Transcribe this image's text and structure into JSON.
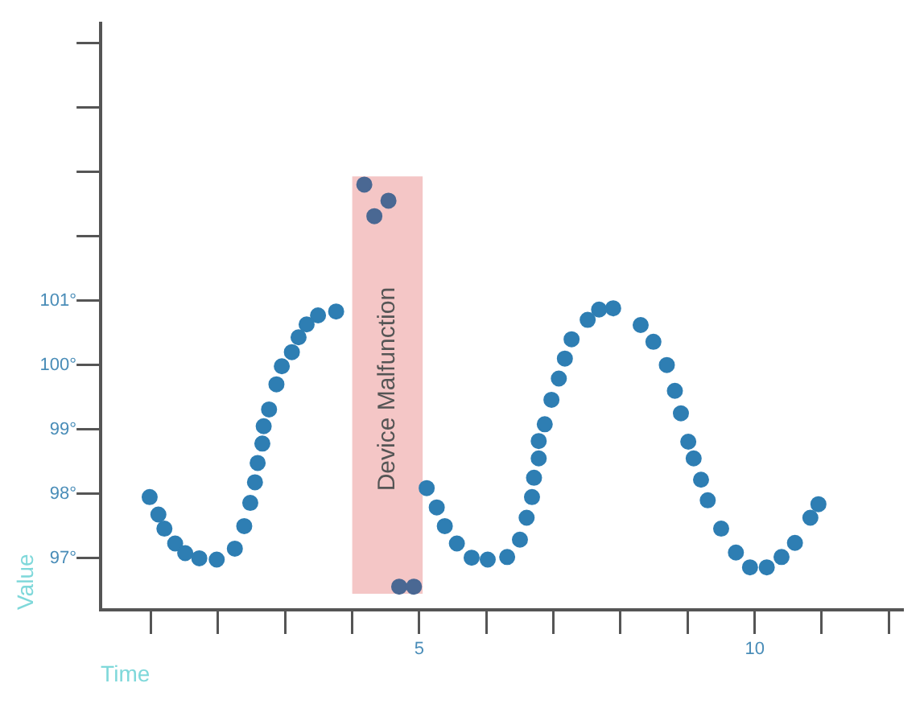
{
  "chart_data": {
    "type": "scatter",
    "xlabel": "Time",
    "ylabel": "Value",
    "marker": "circle",
    "xlim": [
      0.25,
      12.2
    ],
    "ylim": [
      96.2,
      105.3
    ],
    "xticks": [
      {
        "value": 1,
        "label": null
      },
      {
        "value": 2,
        "label": null
      },
      {
        "value": 3,
        "label": null
      },
      {
        "value": 4,
        "label": null
      },
      {
        "value": 5,
        "label": "5"
      },
      {
        "value": 6,
        "label": null
      },
      {
        "value": 7,
        "label": null
      },
      {
        "value": 8,
        "label": null
      },
      {
        "value": 9,
        "label": null
      },
      {
        "value": 10,
        "label": "10"
      },
      {
        "value": 11,
        "label": null
      },
      {
        "value": 12,
        "label": null
      }
    ],
    "yticks": [
      {
        "value": 97,
        "label": "97°"
      },
      {
        "value": 98,
        "label": "98°"
      },
      {
        "value": 99,
        "label": "99°"
      },
      {
        "value": 100,
        "label": "100°"
      },
      {
        "value": 101,
        "label": "101°"
      },
      {
        "value": 102,
        "label": null
      },
      {
        "value": 103,
        "label": null
      },
      {
        "value": 104,
        "label": null
      },
      {
        "value": 105,
        "label": null
      }
    ],
    "bands": [
      {
        "axis": "x",
        "from": 4.0,
        "to": 5.05,
        "label": "Device Malfunction",
        "color": "#f4c6c6"
      }
    ],
    "series": [
      {
        "color": "#2e7eb3",
        "x": [
          0.98,
          1.11,
          1.2,
          1.36,
          1.51,
          1.72,
          1.98,
          2.25,
          2.39,
          2.48,
          2.55,
          2.59,
          2.66,
          2.68,
          2.76,
          2.87,
          2.95,
          3.1,
          3.2,
          3.32,
          3.49,
          3.76,
          5.11,
          5.26,
          5.38,
          5.56,
          5.78,
          6.02,
          6.31,
          6.5,
          6.6,
          6.68,
          6.71,
          6.78,
          6.78,
          6.87,
          6.97,
          7.08,
          7.17,
          7.27,
          7.51,
          7.68,
          7.89,
          8.3,
          8.49,
          8.69,
          8.81,
          8.9,
          9.01,
          9.09,
          9.2,
          9.3,
          9.5,
          9.72,
          9.93,
          10.18,
          10.4,
          10.6,
          10.83,
          10.95
        ],
        "values": [
          97.95,
          97.68,
          97.46,
          97.23,
          97.08,
          97.0,
          96.98,
          97.15,
          97.5,
          97.86,
          98.18,
          98.48,
          98.78,
          99.05,
          99.31,
          99.7,
          99.98,
          100.2,
          100.43,
          100.63,
          100.77,
          100.83,
          98.09,
          97.79,
          97.5,
          97.23,
          97.01,
          96.98,
          97.02,
          97.29,
          97.63,
          97.95,
          98.25,
          98.55,
          98.82,
          99.08,
          99.46,
          99.79,
          100.1,
          100.4,
          100.7,
          100.86,
          100.88,
          100.62,
          100.36,
          100.0,
          99.6,
          99.25,
          98.81,
          98.55,
          98.22,
          97.9,
          97.46,
          97.09,
          96.86,
          96.86,
          97.02,
          97.24,
          97.63,
          97.84
        ]
      },
      {
        "color": "#4a6893",
        "x": [
          4.18,
          4.33,
          4.54,
          4.7,
          4.92
        ],
        "values": [
          102.8,
          102.31,
          102.55,
          96.56,
          96.56
        ]
      }
    ]
  }
}
